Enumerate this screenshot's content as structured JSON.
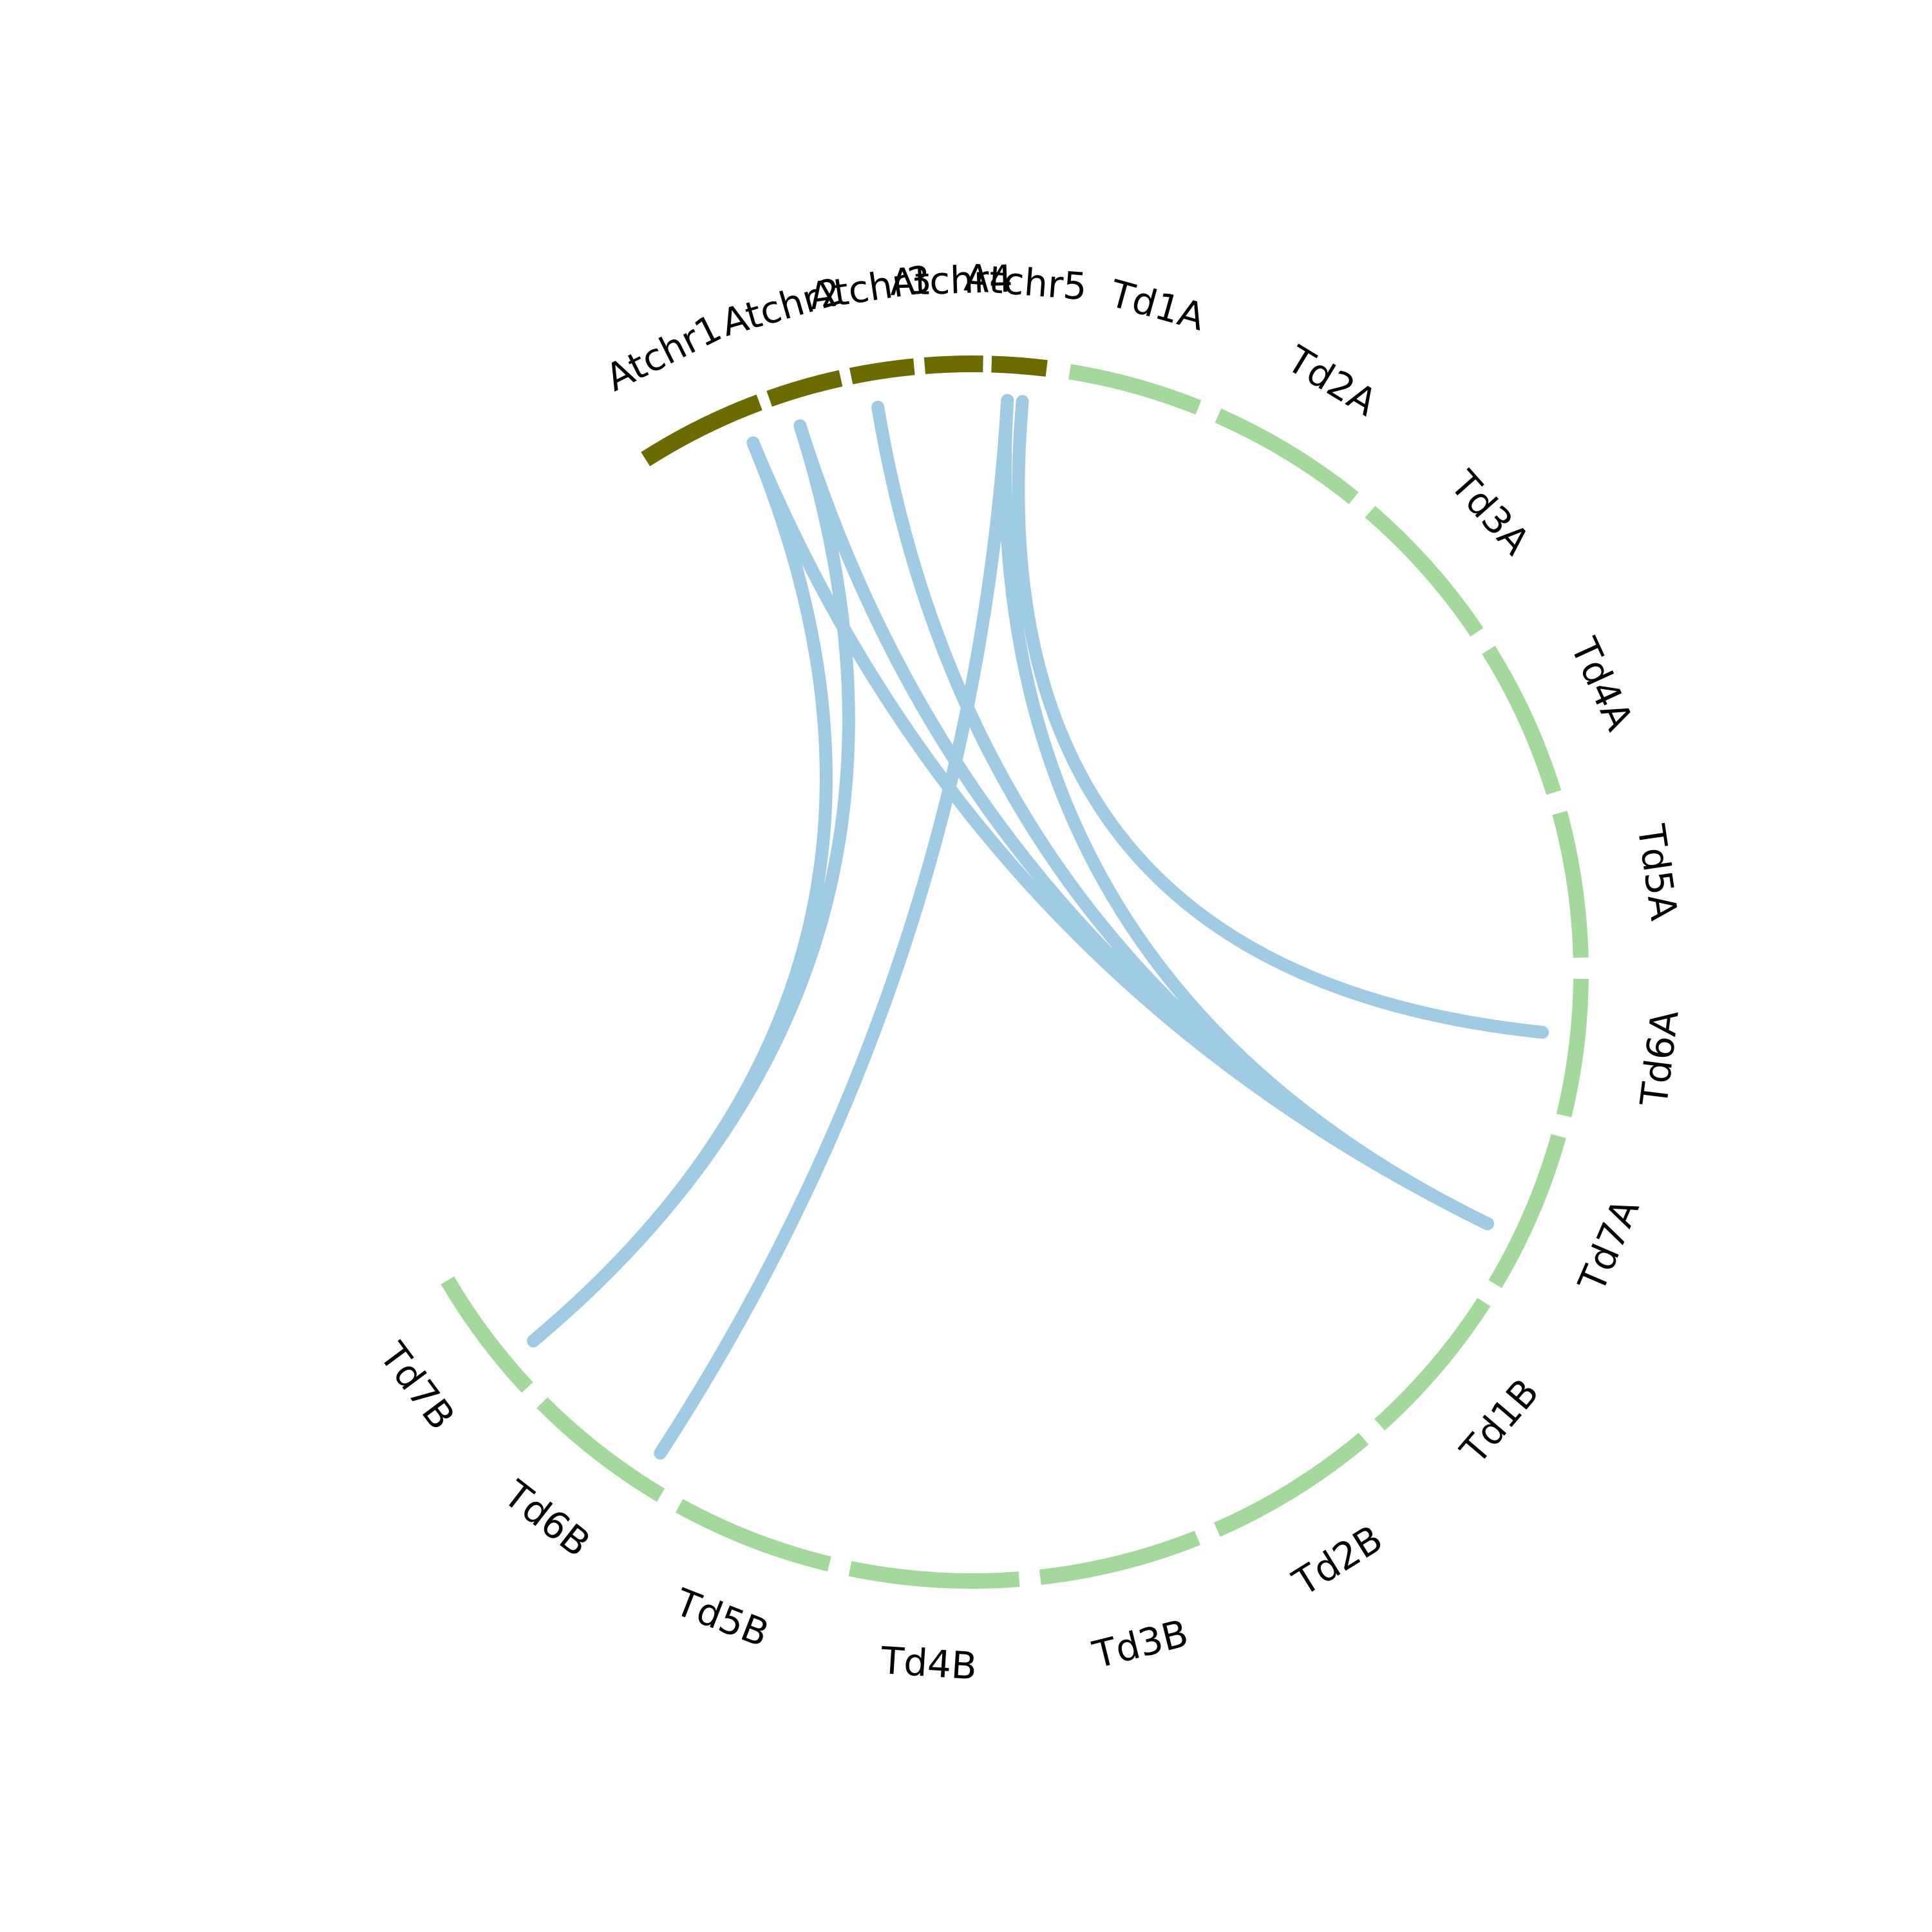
{
  "colors": {
    "background": "#ffffff",
    "arabidopsis_arc": "#6b6b00",
    "wheat_arc": "#a3d89b",
    "link": "#9ecbe3",
    "label": "#000000"
  },
  "chromosomes": [
    {
      "id": "Atchr1",
      "label": "Atchr1",
      "group": "arabidopsis"
    },
    {
      "id": "Atchr2",
      "label": "Atchr2",
      "group": "arabidopsis"
    },
    {
      "id": "Atchr3",
      "label": "Atchr3",
      "group": "arabidopsis"
    },
    {
      "id": "Atchr4",
      "label": "Atchr4",
      "group": "arabidopsis"
    },
    {
      "id": "Atchr5",
      "label": "Atchr5",
      "group": "arabidopsis"
    },
    {
      "id": "Td1A",
      "label": "Td1A",
      "group": "wheat"
    },
    {
      "id": "Td2A",
      "label": "Td2A",
      "group": "wheat"
    },
    {
      "id": "Td3A",
      "label": "Td3A",
      "group": "wheat"
    },
    {
      "id": "Td4A",
      "label": "Td4A",
      "group": "wheat"
    },
    {
      "id": "Td5A",
      "label": "Td5A",
      "group": "wheat"
    },
    {
      "id": "Td6A",
      "label": "Td6A",
      "group": "wheat"
    },
    {
      "id": "Td7A",
      "label": "Td7A",
      "group": "wheat"
    },
    {
      "id": "Td1B",
      "label": "Td1B",
      "group": "wheat"
    },
    {
      "id": "Td2B",
      "label": "Td2B",
      "group": "wheat"
    },
    {
      "id": "Td3B",
      "label": "Td3B",
      "group": "wheat"
    },
    {
      "id": "Td4B",
      "label": "Td4B",
      "group": "wheat"
    },
    {
      "id": "Td5B",
      "label": "Td5B",
      "group": "wheat"
    },
    {
      "id": "Td6B",
      "label": "Td6B",
      "group": "wheat"
    },
    {
      "id": "Td7B",
      "label": "Td7B",
      "group": "wheat"
    }
  ],
  "links": [
    {
      "from": "Atchr1",
      "to": "Td7B"
    },
    {
      "from": "Atchr1",
      "to": "Td7A"
    },
    {
      "from": "Atchr2",
      "to": "Td7B"
    },
    {
      "from": "Atchr2",
      "to": "Td7A"
    },
    {
      "from": "Atchr3",
      "to": "Td7A"
    },
    {
      "from": "Atchr5",
      "to": "Td6B"
    },
    {
      "from": "Atchr5",
      "to": "Td7A"
    },
    {
      "from": "Atchr5",
      "to": "Td6A"
    }
  ]
}
